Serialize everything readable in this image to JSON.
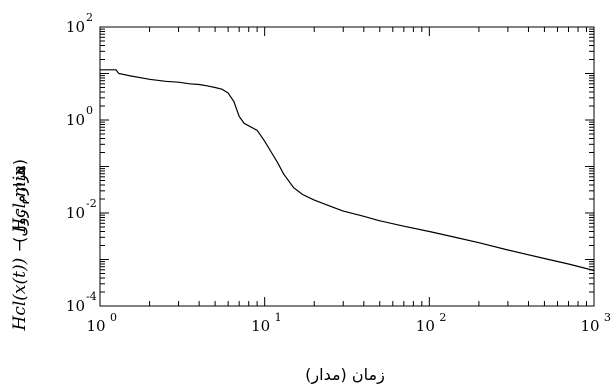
{
  "chart_data": {
    "type": "line",
    "xscale": "log",
    "yscale": "log",
    "xlim": [
      1,
      1000
    ],
    "ylim": [
      0.0001,
      100
    ],
    "xticks": [
      {
        "base": "10",
        "exp": "0"
      },
      {
        "base": "10",
        "exp": "1"
      },
      {
        "base": "10",
        "exp": "2"
      },
      {
        "base": "10",
        "exp": "3"
      }
    ],
    "yticks": [
      {
        "base": "10",
        "exp": "-4"
      },
      {
        "base": "10",
        "exp": "-2"
      },
      {
        "base": "10",
        "exp": "0"
      },
      {
        "base": "10",
        "exp": "2"
      }
    ],
    "xlabel": "زمان (مدار)",
    "ylabel": "H_cl(x(t)) − H_cl,min (هزارم ژول)",
    "ylabel_math": "Hcl(x(t)) − Hcl,min",
    "ylabel_units": "(هزارم ژول)",
    "grid": false,
    "legend": "none",
    "line_color": "#000000",
    "series": [
      {
        "x": [
          1.0,
          1.25,
          1.3,
          1.5,
          2.0,
          2.5,
          3.0,
          3.5,
          4.0,
          4.5,
          5.0,
          5.5,
          6.0,
          6.5,
          7.0,
          7.5,
          8.0,
          9.0,
          10.0,
          11.0,
          12.0,
          13.0,
          15.0,
          17.0,
          20.0,
          25.0,
          30.0,
          40.0,
          50.0,
          70.0,
          100.0,
          150.0,
          200.0,
          300.0,
          500.0,
          700.0,
          1000.0
        ],
        "y": [
          12.0,
          12.0,
          10.0,
          9.0,
          7.5,
          6.8,
          6.5,
          6.0,
          5.8,
          5.4,
          5.0,
          4.6,
          3.8,
          2.5,
          1.2,
          0.85,
          0.75,
          0.6,
          0.35,
          0.2,
          0.12,
          0.07,
          0.035,
          0.025,
          0.019,
          0.014,
          0.011,
          0.0085,
          0.0068,
          0.0052,
          0.004,
          0.0029,
          0.0023,
          0.0016,
          0.00105,
          0.0008,
          0.00058
        ]
      }
    ]
  }
}
